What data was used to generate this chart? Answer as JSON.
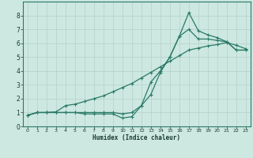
{
  "xlabel": "Humidex (Indice chaleur)",
  "background_color": "#cce8e0",
  "grid_color": "#b8d4cc",
  "line_color": "#2a7a68",
  "spine_color": "#2a7a68",
  "xlim": [
    -0.5,
    23.5
  ],
  "ylim": [
    0,
    9
  ],
  "xticks": [
    0,
    1,
    2,
    3,
    4,
    5,
    6,
    7,
    8,
    9,
    10,
    11,
    12,
    13,
    14,
    15,
    16,
    17,
    18,
    19,
    20,
    21,
    22,
    23
  ],
  "yticks": [
    0,
    1,
    2,
    3,
    4,
    5,
    6,
    7,
    8
  ],
  "line1_x": [
    0,
    1,
    2,
    3,
    4,
    5,
    6,
    7,
    8,
    9,
    10,
    11,
    12,
    13,
    14,
    15,
    16,
    17,
    18,
    19,
    20,
    21,
    22,
    23
  ],
  "line1_y": [
    0.8,
    1.0,
    1.0,
    1.0,
    1.0,
    1.0,
    0.9,
    0.9,
    0.9,
    0.9,
    0.6,
    0.7,
    1.5,
    3.2,
    4.0,
    5.0,
    6.5,
    8.2,
    6.9,
    6.6,
    6.4,
    6.1,
    5.5,
    5.5
  ],
  "line2_x": [
    0,
    1,
    2,
    3,
    4,
    5,
    6,
    7,
    8,
    9,
    10,
    11,
    12,
    13,
    14,
    15,
    16,
    17,
    18,
    19,
    20,
    21,
    22,
    23
  ],
  "line2_y": [
    0.8,
    1.0,
    1.0,
    1.05,
    1.5,
    1.6,
    1.8,
    2.0,
    2.2,
    2.5,
    2.8,
    3.1,
    3.5,
    3.9,
    4.3,
    4.7,
    5.1,
    5.5,
    5.65,
    5.8,
    5.9,
    6.05,
    5.85,
    5.6
  ],
  "line3_x": [
    0,
    1,
    2,
    3,
    4,
    5,
    6,
    7,
    8,
    9,
    10,
    11,
    12,
    13,
    14,
    15,
    16,
    17,
    18,
    19,
    20,
    21,
    22,
    23
  ],
  "line3_y": [
    0.8,
    1.0,
    1.0,
    1.0,
    1.0,
    1.0,
    1.0,
    1.0,
    1.0,
    1.0,
    0.9,
    1.0,
    1.5,
    2.3,
    3.9,
    5.0,
    6.5,
    7.0,
    6.3,
    6.3,
    6.2,
    6.1,
    5.5,
    5.5
  ]
}
